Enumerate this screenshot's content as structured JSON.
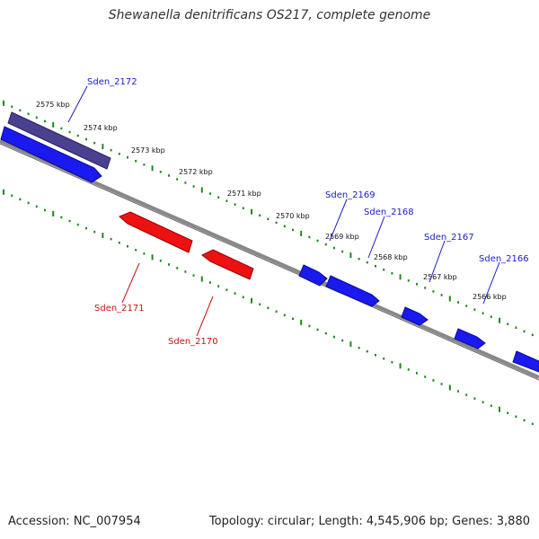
{
  "title": "Shewanella denitrificans OS217, complete genome",
  "footer": {
    "accession": "Accession: NC_007954",
    "summary": "Topology: circular; Length: 4,545,906 bp; Genes: 3,880"
  },
  "colors": {
    "forward_gene": "#1a1aee",
    "reverse_gene": "#ee1111",
    "highlight_gene": "#4a4090",
    "backbone": "#888888",
    "tick": "#1a8a1a",
    "forward_label": "#1a1acc",
    "reverse_label": "#cc1111"
  },
  "kbp_ticks": [
    "2575 kbp",
    "2574 kbp",
    "2573 kbp",
    "2572 kbp",
    "2571 kbp",
    "2570 kbp",
    "2569 kbp",
    "2568 kbp",
    "2567 kbp",
    "2566 kbp"
  ],
  "genes": [
    {
      "name": "Sden_2172",
      "strand": "forward",
      "highlight": true
    },
    {
      "name": "Sden_2171",
      "strand": "reverse"
    },
    {
      "name": "Sden_2170",
      "strand": "reverse"
    },
    {
      "name": "Sden_2169",
      "strand": "forward"
    },
    {
      "name": "Sden_2168",
      "strand": "forward"
    },
    {
      "name": "Sden_2167",
      "strand": "forward"
    },
    {
      "name": "Sden_2166",
      "strand": "forward"
    }
  ]
}
